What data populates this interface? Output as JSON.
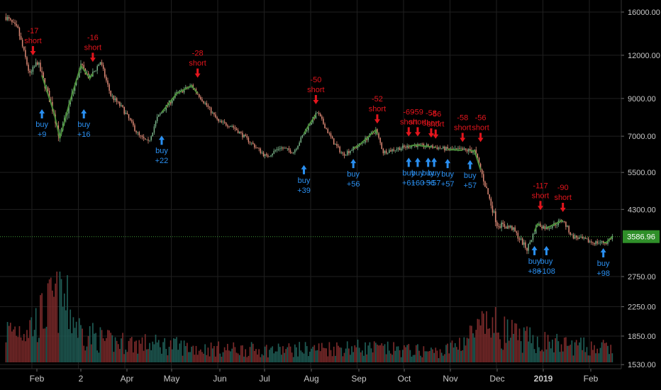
{
  "chart_data": {
    "type": "candlestick",
    "y_scale": "log",
    "grid": true,
    "y_ticks": [
      16000,
      12000,
      9000,
      7000,
      5500,
      4300,
      2750,
      2250,
      1850,
      1530
    ],
    "y_tick_labels": [
      "16000.00",
      "12000.00",
      "9000.00",
      "7000.00",
      "5500.00",
      "4300.00",
      "2750.00",
      "2250.00",
      "1850.00",
      "1530.00"
    ],
    "x_tick_labels": [
      "Feb",
      "2",
      "Apr",
      "May",
      "Jun",
      "Jul",
      "Aug",
      "Sep",
      "Oct",
      "Nov",
      "Dec",
      "2019",
      "Feb"
    ],
    "last_price_label": "3586.96",
    "last_price": 3586.96,
    "price_path": [
      [
        "2018-01-01",
        15500
      ],
      [
        "2018-01-09",
        14200
      ],
      [
        "2018-01-17",
        10500
      ],
      [
        "2018-01-22",
        11500
      ],
      [
        "2018-02-02",
        8200
      ],
      [
        "2018-02-06",
        6900
      ],
      [
        "2018-02-12",
        8600
      ],
      [
        "2018-02-20",
        11200
      ],
      [
        "2018-02-26",
        10300
      ],
      [
        "2018-03-05",
        11500
      ],
      [
        "2018-03-12",
        9200
      ],
      [
        "2018-03-20",
        8400
      ],
      [
        "2018-03-31",
        7000
      ],
      [
        "2018-04-06",
        6700
      ],
      [
        "2018-04-12",
        7900
      ],
      [
        "2018-04-25",
        9300
      ],
      [
        "2018-05-05",
        9800
      ],
      [
        "2018-05-15",
        8600
      ],
      [
        "2018-05-23",
        7700
      ],
      [
        "2018-06-01",
        7500
      ],
      [
        "2018-06-12",
        6800
      ],
      [
        "2018-06-24",
        6100
      ],
      [
        "2018-07-03",
        6500
      ],
      [
        "2018-07-12",
        6300
      ],
      [
        "2018-07-22",
        7500
      ],
      [
        "2018-07-28",
        8200
      ],
      [
        "2018-08-08",
        6700
      ],
      [
        "2018-08-14",
        6200
      ],
      [
        "2018-08-25",
        6600
      ],
      [
        "2018-09-05",
        7300
      ],
      [
        "2018-09-10",
        6300
      ],
      [
        "2018-09-20",
        6450
      ],
      [
        "2018-10-01",
        6600
      ],
      [
        "2018-10-15",
        6500
      ],
      [
        "2018-10-25",
        6400
      ],
      [
        "2018-11-10",
        6350
      ],
      [
        "2018-11-14",
        5600
      ],
      [
        "2018-11-20",
        4600
      ],
      [
        "2018-11-25",
        3900
      ],
      [
        "2018-12-05",
        3800
      ],
      [
        "2018-12-15",
        3300
      ],
      [
        "2018-12-22",
        3900
      ],
      [
        "2018-12-28",
        3800
      ],
      [
        "2019-01-08",
        4000
      ],
      [
        "2019-01-14",
        3600
      ],
      [
        "2019-01-28",
        3450
      ],
      [
        "2019-02-06",
        3450
      ],
      [
        "2019-02-10",
        3586.96
      ]
    ],
    "volume_path": [
      [
        "2018-01-01",
        0.45
      ],
      [
        "2018-01-20",
        0.55
      ],
      [
        "2018-02-06",
        1.0
      ],
      [
        "2018-02-20",
        0.45
      ],
      [
        "2018-03-10",
        0.3
      ],
      [
        "2018-04-20",
        0.25
      ],
      [
        "2018-05-10",
        0.2
      ],
      [
        "2018-07-01",
        0.18
      ],
      [
        "2018-08-20",
        0.22
      ],
      [
        "2018-10-20",
        0.15
      ],
      [
        "2018-11-20",
        0.55
      ],
      [
        "2018-12-10",
        0.35
      ],
      [
        "2019-01-10",
        0.25
      ],
      [
        "2019-02-10",
        0.2
      ]
    ],
    "annotations": [
      {
        "kind": "short",
        "date": "2018-01-19",
        "price": 11500,
        "value": "-17",
        "label": "short"
      },
      {
        "kind": "short",
        "date": "2018-02-28",
        "price": 11000,
        "value": "-16",
        "label": "short"
      },
      {
        "kind": "short",
        "date": "2018-05-09",
        "price": 9900,
        "value": "-28",
        "label": "short"
      },
      {
        "kind": "short",
        "date": "2018-07-27",
        "price": 8300,
        "value": "-50",
        "label": "short"
      },
      {
        "kind": "short",
        "date": "2018-09-06",
        "price": 7300,
        "value": "-52",
        "label": "short"
      },
      {
        "kind": "short",
        "date": "2018-09-27",
        "price": 6700,
        "value": "-69",
        "label": "short"
      },
      {
        "kind": "short",
        "date": "2018-10-03",
        "price": 6700,
        "value": "-59",
        "label": "short"
      },
      {
        "kind": "short",
        "date": "2018-10-12",
        "price": 6650,
        "value": "-58",
        "label": "short"
      },
      {
        "kind": "short",
        "date": "2018-10-15",
        "price": 6600,
        "value": "-56",
        "label": "short"
      },
      {
        "kind": "short",
        "date": "2018-11-02",
        "price": 6450,
        "value": "-58",
        "label": "short"
      },
      {
        "kind": "short",
        "date": "2018-11-14",
        "price": 6450,
        "value": "-56",
        "label": "short"
      },
      {
        "kind": "short",
        "date": "2018-12-24",
        "price": 4100,
        "value": "-117",
        "label": "short"
      },
      {
        "kind": "short",
        "date": "2019-01-08",
        "price": 4050,
        "value": "-90",
        "label": "short"
      },
      {
        "kind": "buy",
        "date": "2018-01-25",
        "price": 8700,
        "label": "buy",
        "value": "+9"
      },
      {
        "kind": "buy",
        "date": "2018-02-22",
        "price": 8700,
        "label": "buy",
        "value": "+16"
      },
      {
        "kind": "buy",
        "date": "2018-04-15",
        "price": 7300,
        "label": "buy",
        "value": "+22"
      },
      {
        "kind": "buy",
        "date": "2018-07-19",
        "price": 6000,
        "label": "buy",
        "value": "+39"
      },
      {
        "kind": "buy",
        "date": "2018-08-21",
        "price": 6250,
        "label": "buy",
        "value": "+56"
      },
      {
        "kind": "buy",
        "date": "2018-09-27",
        "price": 6300,
        "label": "buy",
        "value": "+61"
      },
      {
        "kind": "buy",
        "date": "2018-10-03",
        "price": 6300,
        "label": "buy",
        "value": "+60"
      },
      {
        "kind": "buy",
        "date": "2018-10-10",
        "price": 6300,
        "label": "buy",
        "value": "+56"
      },
      {
        "kind": "buy",
        "date": "2018-10-14",
        "price": 6300,
        "label": "buy",
        "value": "+57"
      },
      {
        "kind": "buy",
        "date": "2018-10-23",
        "price": 6250,
        "label": "buy",
        "value": "+57"
      },
      {
        "kind": "buy",
        "date": "2018-11-07",
        "price": 6200,
        "label": "buy",
        "value": "+57"
      },
      {
        "kind": "buy",
        "date": "2018-12-20",
        "price": 3500,
        "label": "buy",
        "value": "+86"
      },
      {
        "kind": "buy",
        "date": "2018-12-28",
        "price": 3500,
        "label": "buy",
        "value": "+108"
      },
      {
        "kind": "buy",
        "date": "2019-02-04",
        "price": 3450,
        "label": "buy",
        "value": "+98"
      }
    ]
  },
  "colors": {
    "background": "#000000",
    "grid": "#1f1f1f",
    "candle_up": "#7ab58a",
    "candle_down": "#e08a76",
    "trend_line": "#4c8f3a",
    "short_marker": "#e3151d",
    "buy_marker": "#2a8ff0",
    "price_line": "#3f9a36",
    "price_label_bg": "#2f8f29",
    "volume_up": "#1f5c55",
    "volume_down": "#7a2a2a",
    "axis_text": "#c8c8c8"
  }
}
